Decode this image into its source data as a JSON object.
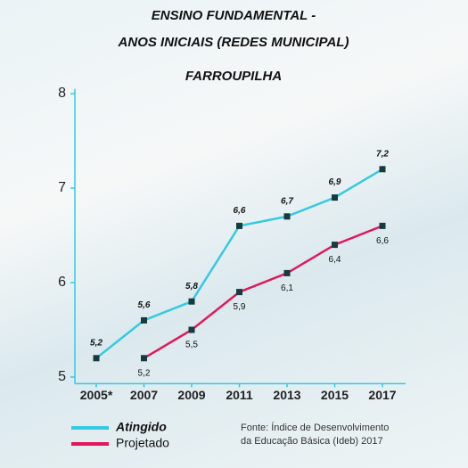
{
  "chart_data": {
    "type": "line",
    "title": [
      "ENSINO FUNDAMENTAL -",
      "ANOS INICIAIS (REDES MUNICIPAL)"
    ],
    "subtitle": "FARROUPILHA",
    "categories": [
      "2005*",
      "2007",
      "2009",
      "2011",
      "2013",
      "2015",
      "2017"
    ],
    "series": [
      {
        "name": "Atingido",
        "color": "#35c9e2",
        "values": [
          5.2,
          5.6,
          5.8,
          6.6,
          6.7,
          6.9,
          7.2
        ],
        "value_labels": [
          "5,2",
          "5,6",
          "5,8",
          "6,6",
          "6,7",
          "6,9",
          "7,2"
        ]
      },
      {
        "name": "Projetado",
        "color": "#e3165b",
        "values": [
          null,
          5.2,
          5.5,
          5.9,
          6.1,
          6.4,
          6.6
        ],
        "value_labels": [
          null,
          "5,2",
          "5,5",
          "5,9",
          "6,1",
          "6,4",
          "6,6"
        ]
      }
    ],
    "ylim": [
      4.93,
      8.05
    ],
    "yticks": [
      5,
      6,
      7,
      8
    ],
    "source": [
      "Fonte: Índice de Desenvolvimento",
      "da Educação Básica (Ideb) 2017"
    ]
  }
}
